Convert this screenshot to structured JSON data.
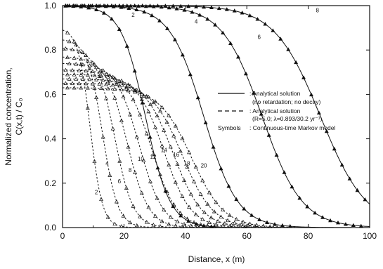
{
  "chart_data": {
    "type": "line",
    "xlabel": "Distance, x (m)",
    "ylabel_lines": [
      "Normalized concentration,",
      "C(x,t) / C₀"
    ],
    "xlim": [
      0,
      100
    ],
    "ylim": [
      0,
      1.0
    ],
    "x_ticks": [
      "0",
      "20",
      "40",
      "60",
      "80",
      "100"
    ],
    "y_ticks": [
      "0.0",
      "0.2",
      "0.4",
      "0.6",
      "0.8",
      "1.0"
    ],
    "legend": [
      {
        "style": "solid",
        "line1": ": Analytical solution",
        "line2": "(no retardation; no decay)"
      },
      {
        "style": "dashed",
        "line1": ": Analytical solution",
        "line2": "(R=5.0; λ=0.893/30.2 yr⁻¹)"
      },
      {
        "style": "symbols",
        "prefix": "Symbols",
        "line1": ": Continuous-time Markov model"
      }
    ],
    "series": [
      {
        "group": "no retardation; no decay",
        "label": "2",
        "time": 2,
        "center": 27,
        "width": 4.0,
        "label_x": 23,
        "label_y": 0.95
      },
      {
        "group": "no retardation; no decay",
        "label": "4",
        "time": 4,
        "center": 46,
        "width": 5.5,
        "label_x": 43.5,
        "label_y": 0.92
      },
      {
        "group": "no retardation; no decay",
        "label": "6",
        "time": 6,
        "center": 65,
        "width": 6.5,
        "label_x": 64,
        "label_y": 0.85
      },
      {
        "group": "no retardation; no decay",
        "label": "8",
        "time": 8,
        "center": 84,
        "width": 7.5,
        "label_x": 83,
        "label_y": 0.97
      },
      {
        "group": "R=5.0; decay",
        "label": "2",
        "time": 2,
        "amp": 0.9,
        "center": 9,
        "width": 2.0,
        "label_x": 11,
        "label_y": 0.15
      },
      {
        "group": "R=5.0; decay",
        "label": "4",
        "time": 4,
        "amp": 0.85,
        "center": 13,
        "width": 2.5,
        "label_x": 14.5,
        "label_y": 0.28
      },
      {
        "group": "R=5.0; decay",
        "label": "6",
        "time": 6,
        "amp": 0.81,
        "center": 17,
        "width": 3.0,
        "label_x": 18.5,
        "label_y": 0.2
      },
      {
        "group": "R=5.0; decay",
        "label": "8",
        "time": 8,
        "amp": 0.77,
        "center": 21,
        "width": 3.5,
        "label_x": 22,
        "label_y": 0.25
      },
      {
        "group": "R=5.0; decay",
        "label": "10",
        "time": 10,
        "amp": 0.74,
        "center": 25,
        "width": 3.8,
        "label_x": 25.5,
        "label_y": 0.3
      },
      {
        "group": "R=5.0; decay",
        "label": "12",
        "time": 12,
        "amp": 0.71,
        "center": 29,
        "width": 4.1,
        "label_x": 29.5,
        "label_y": 0.31
      },
      {
        "group": "R=5.0; decay",
        "label": "14",
        "time": 14,
        "amp": 0.69,
        "center": 33,
        "width": 4.4,
        "label_x": 33,
        "label_y": 0.34
      },
      {
        "group": "R=5.0; decay",
        "label": "16",
        "time": 16,
        "amp": 0.67,
        "center": 36,
        "width": 4.7,
        "label_x": 37,
        "label_y": 0.32
      },
      {
        "group": "R=5.0; decay",
        "label": "18",
        "time": 18,
        "amp": 0.65,
        "center": 39,
        "width": 5.0,
        "label_x": 40.5,
        "label_y": 0.28
      },
      {
        "group": "R=5.0; decay",
        "label": "20",
        "time": 20,
        "amp": 0.63,
        "center": 42,
        "width": 5.3,
        "label_x": 46,
        "label_y": 0.27
      }
    ]
  }
}
